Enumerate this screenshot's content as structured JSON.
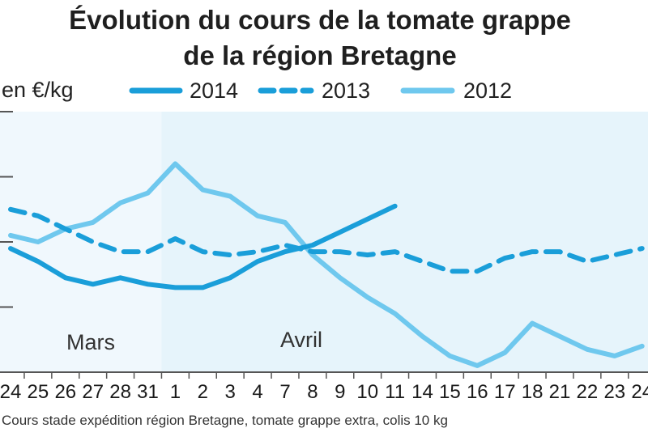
{
  "chart_data": {
    "type": "line",
    "title_line1": "Évolution du cours de la tomate grappe",
    "title_line2": "de la région Bretagne",
    "ylabel": "en €/kg",
    "source": "Cours stade expédition région Bretagne, tomate grappe extra, colis 10 kg",
    "months": [
      {
        "label": "Mars"
      },
      {
        "label": "Avril"
      }
    ],
    "categories": [
      "24",
      "25",
      "26",
      "27",
      "28",
      "31",
      "1",
      "2",
      "3",
      "4",
      "7",
      "8",
      "9",
      "10",
      "11",
      "14",
      "15",
      "16",
      "17",
      "18",
      "21",
      "22",
      "23",
      "24"
    ],
    "ylim": [
      0,
      4
    ],
    "legend_position": "top",
    "colors": {
      "plot_bg": "#e6f4fb",
      "mars_bg": "#f0f8fd",
      "axis": "#555555",
      "s2014": "#1a9ed9",
      "s2013": "#1a9ed9",
      "s2012": "#6fc8ee"
    },
    "series": [
      {
        "name": "2014",
        "style": "solid",
        "values": [
          1.9,
          1.7,
          1.45,
          1.35,
          1.45,
          1.35,
          1.3,
          1.3,
          1.45,
          1.7,
          1.85,
          1.95,
          2.15,
          2.35,
          2.55,
          null,
          null,
          null,
          null,
          null,
          null,
          null,
          null,
          null
        ]
      },
      {
        "name": "2013",
        "style": "dashed",
        "values": [
          2.5,
          2.4,
          2.2,
          2.0,
          1.85,
          1.85,
          2.05,
          1.85,
          1.8,
          1.85,
          1.95,
          1.85,
          1.85,
          1.8,
          1.85,
          1.7,
          1.55,
          1.55,
          1.75,
          1.85,
          1.85,
          1.7,
          1.8,
          1.9
        ]
      },
      {
        "name": "2012",
        "style": "solid",
        "values": [
          2.1,
          2.0,
          2.2,
          2.3,
          2.6,
          2.75,
          3.2,
          2.8,
          2.7,
          2.4,
          2.3,
          1.8,
          1.45,
          1.15,
          0.9,
          0.55,
          0.25,
          0.1,
          0.3,
          0.75,
          0.55,
          0.35,
          0.25,
          0.4
        ]
      }
    ]
  }
}
